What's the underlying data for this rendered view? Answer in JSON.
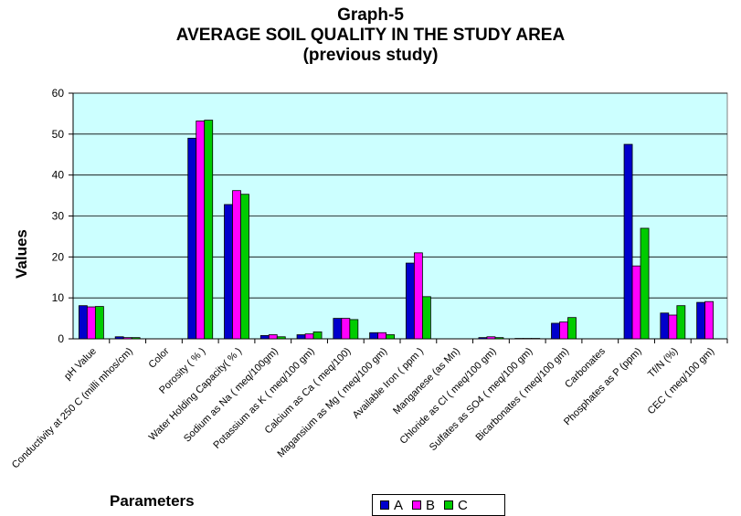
{
  "chart_data": {
    "type": "bar",
    "title_lines": [
      "Graph-5",
      "AVERAGE SOIL QUALITY IN THE STUDY AREA",
      "(previous study)"
    ],
    "xlabel": "Parameters",
    "ylabel": "Values",
    "ylim": [
      0,
      60
    ],
    "yticks": [
      0,
      10,
      20,
      30,
      40,
      50,
      60
    ],
    "grid": true,
    "plot_background": "#ccffff",
    "legend_position": "bottom",
    "categories": [
      "pH Value",
      "Conductivity at 250 C (milli mhos/cm)",
      "Color",
      "Porosity ( % )",
      "Water Holding Capacity( % )",
      "Sodium as Na  ( meq/100gm)",
      "Potassium as K  ( meq/100 gm)",
      "Calcium as Ca ( meq/100)",
      "Magansium as Mg  ( meq/100 gm)",
      "Available Iron ( ppm )",
      "Manganese (as Mn)",
      "Chloride as Cl  ( meq/100 gm)",
      "Sulfates as SO4   ( meq/100 gm)",
      "Bicarbonates ( meq/100 gm)",
      "Carbonates",
      "Phosphates as P  (ppm)",
      "Tf/N (%)",
      "CEC  ( meq/100 gm)"
    ],
    "series": [
      {
        "name": "A",
        "color": "#0000cc",
        "values": [
          8.1,
          0.5,
          0,
          49.0,
          32.8,
          0.8,
          1.0,
          5.0,
          1.5,
          18.5,
          0,
          0.3,
          0.1,
          3.8,
          0,
          47.5,
          6.3,
          8.9
        ]
      },
      {
        "name": "B",
        "color": "#ff00ff",
        "values": [
          7.8,
          0.3,
          0,
          53.2,
          36.2,
          1.0,
          1.2,
          5.0,
          1.5,
          21.0,
          0,
          0.5,
          0.1,
          4.1,
          0,
          17.8,
          5.8,
          9.1
        ]
      },
      {
        "name": "C",
        "color": "#00cc00",
        "values": [
          7.9,
          0.3,
          0,
          53.4,
          35.3,
          0.5,
          1.7,
          4.7,
          1.0,
          10.3,
          0,
          0.3,
          0.1,
          5.2,
          0,
          27.0,
          8.1,
          0
        ]
      }
    ]
  }
}
